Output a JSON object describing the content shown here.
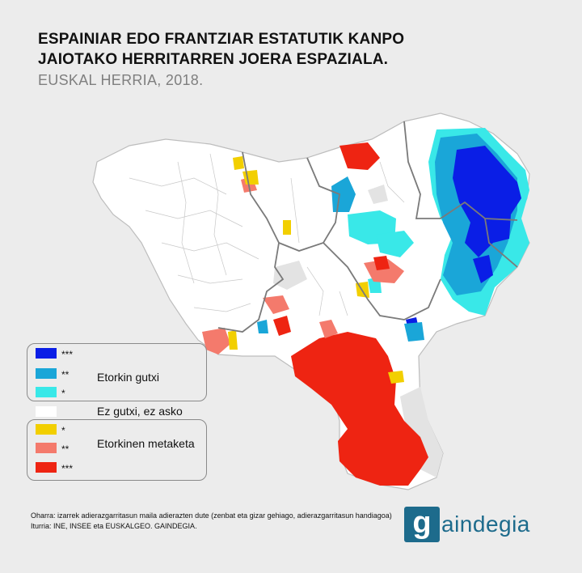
{
  "title": {
    "line1": "ESPAINIAR EDO FRANTZIAR ESTATUTIK KANPO",
    "line2": "JAIOTAKO HERRITARREN JOERA ESPAZIALA.",
    "subtitle": "EUSKAL HERRIA, 2018."
  },
  "colors": {
    "blue3": "#0a1ee6",
    "blue2": "#1aa6d8",
    "blue1": "#39e8e8",
    "neutral": "#ffffff",
    "yellow": "#f2cf00",
    "salmon": "#f47a6c",
    "red": "#ee2412",
    "outside": "#e3e3e3",
    "border": "#7a7a7a"
  },
  "legend": {
    "low": {
      "label": "Etorkin gutxi",
      "items": [
        {
          "mark": "***",
          "color_key": "blue3"
        },
        {
          "mark": "**",
          "color_key": "blue2"
        },
        {
          "mark": "*",
          "color_key": "blue1"
        }
      ]
    },
    "neutral": {
      "label": "Ez gutxi, ez asko"
    },
    "high": {
      "label": "Etorkinen metaketa",
      "items": [
        {
          "mark": "*",
          "color_key": "yellow"
        },
        {
          "mark": "**",
          "color_key": "salmon"
        },
        {
          "mark": "***",
          "color_key": "red"
        }
      ]
    }
  },
  "footer": {
    "note": "Oharra: izarrek adierazgarritasun maila adierazten dute (zenbat eta gizar gehiago, adierazgarritasun handiagoa)",
    "source": "Iturria: INE, INSEE eta EUSKALGEO. GAINDEGIA."
  },
  "logo": {
    "mark": "g",
    "text": "aindegia"
  }
}
